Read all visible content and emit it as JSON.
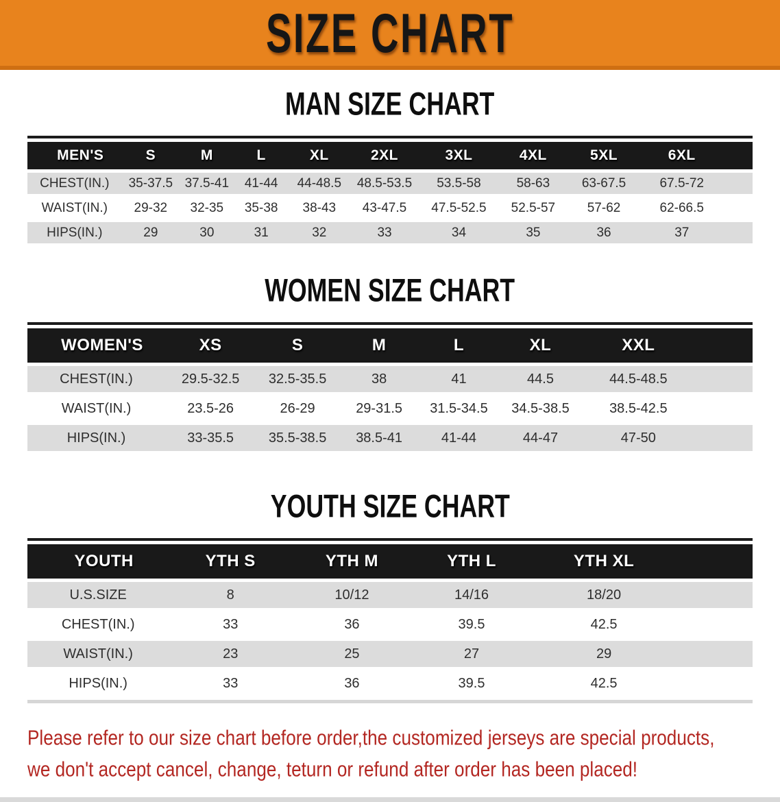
{
  "banner": {
    "title": "SIZE CHART"
  },
  "sections": [
    {
      "heading": "MAN SIZE CHART",
      "table": {
        "name_label": "MEN'S",
        "columns": [
          "S",
          "M",
          "L",
          "XL",
          "2XL",
          "3XL",
          "4XL",
          "5XL",
          "6XL"
        ],
        "rows": [
          {
            "label": "CHEST(IN.)",
            "values": [
              "35-37.5",
              "37.5-41",
              "41-44",
              "44-48.5",
              "48.5-53.5",
              "53.5-58",
              "58-63",
              "63-67.5",
              "67.5-72"
            ]
          },
          {
            "label": "WAIST(IN.)",
            "values": [
              "29-32",
              "32-35",
              "35-38",
              "38-43",
              "43-47.5",
              "47.5-52.5",
              "52.5-57",
              "57-62",
              "62-66.5"
            ]
          },
          {
            "label": "HIPS(IN.)",
            "values": [
              "29",
              "30",
              "31",
              "32",
              "33",
              "34",
              "35",
              "36",
              "37"
            ]
          }
        ]
      }
    },
    {
      "heading": "WOMEN SIZE CHART",
      "table": {
        "name_label": "WOMEN'S",
        "columns": [
          "XS",
          "S",
          "M",
          "L",
          "XL",
          "XXL"
        ],
        "rows": [
          {
            "label": "CHEST(IN.)",
            "values": [
              "29.5-32.5",
              "32.5-35.5",
              "38",
              "41",
              "44.5",
              "44.5-48.5"
            ]
          },
          {
            "label": "WAIST(IN.)",
            "values": [
              "23.5-26",
              "26-29",
              "29-31.5",
              "31.5-34.5",
              "34.5-38.5",
              "38.5-42.5"
            ]
          },
          {
            "label": "HIPS(IN.)",
            "values": [
              "33-35.5",
              "35.5-38.5",
              "38.5-41",
              "41-44",
              "44-47",
              "47-50"
            ]
          }
        ]
      }
    },
    {
      "heading": "YOUTH SIZE CHART",
      "table": {
        "name_label": "YOUTH",
        "columns": [
          "YTH S",
          "YTH M",
          "YTH L",
          "YTH XL"
        ],
        "rows": [
          {
            "label": "U.S.SIZE",
            "values": [
              "8",
              "10/12",
              "14/16",
              "18/20"
            ]
          },
          {
            "label": "CHEST(IN.)",
            "values": [
              "33",
              "36",
              "39.5",
              "42.5"
            ]
          },
          {
            "label": "WAIST(IN.)",
            "values": [
              "23",
              "25",
              "27",
              "29"
            ]
          },
          {
            "label": "HIPS(IN.)",
            "values": [
              "33",
              "36",
              "39.5",
              "42.5"
            ]
          }
        ]
      }
    }
  ],
  "footer": {
    "line1": "Please refer to our size chart before order,the customized jerseys are special products,",
    "line2": "we don't accept cancel, change, teturn or refund after order has been placed!"
  },
  "colors": {
    "banner_orange": "#E8831D",
    "banner_edge": "#CF6F12",
    "header_black": "#191919",
    "row_gray": "#DCDCDC",
    "disclaimer_red": "#B32722"
  }
}
